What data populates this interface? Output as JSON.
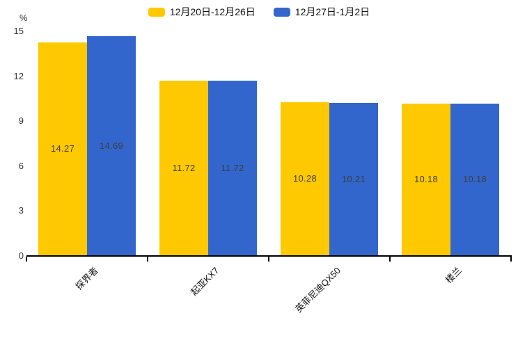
{
  "chart_data": {
    "type": "bar",
    "title": "",
    "ylabel": "%",
    "xlabel": "",
    "categories": [
      "探界者",
      "起亚KX7",
      "英菲尼迪QX50",
      "楼兰"
    ],
    "series": [
      {
        "name": "12月20日-12月26日",
        "color": "#fec900",
        "values": [
          14.27,
          11.72,
          10.28,
          10.18
        ]
      },
      {
        "name": "12月27日-1月2日",
        "color": "#3366cc",
        "values": [
          14.69,
          11.72,
          10.21,
          10.18
        ]
      }
    ],
    "ylim": [
      0,
      15
    ],
    "yticks": [
      0,
      3,
      6,
      9,
      12,
      15
    ],
    "grid": false,
    "legend_position": "top",
    "value_labels_inside_bars": true
  },
  "colors": {
    "background": "#ffffff",
    "axis": "#000000",
    "tick_label": "#333333",
    "bar_value_label": "#3d3d3d"
  }
}
